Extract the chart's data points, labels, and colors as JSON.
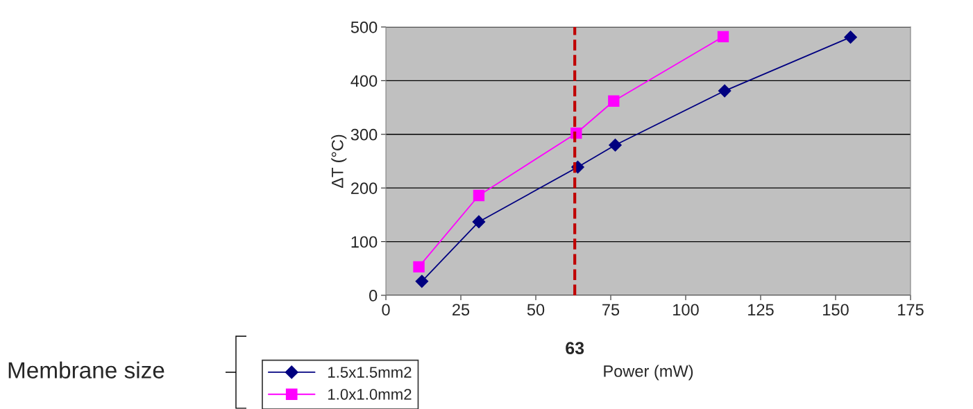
{
  "chart_data": {
    "type": "line",
    "xlabel": "Power (mW)",
    "ylabel": "ΔT (°C)",
    "legend_title": "Membrane size",
    "series": [
      {
        "name": "1.5x1.5mm2",
        "color": "#000080",
        "marker": "diamond",
        "x": [
          12,
          31,
          64,
          76.5,
          113,
          155
        ],
        "values": [
          26,
          137,
          239,
          280,
          381,
          481
        ]
      },
      {
        "name": "1.0x1.0mm2",
        "color": "#ff00ff",
        "marker": "square",
        "x": [
          11,
          31,
          63.5,
          76,
          112.5
        ],
        "values": [
          53,
          186,
          302,
          362,
          482
        ]
      }
    ],
    "xlim": [
      0,
      175
    ],
    "xticks": [
      0,
      25,
      50,
      75,
      100,
      125,
      150,
      175
    ],
    "ylim": [
      0,
      500
    ],
    "yticks": [
      0,
      100,
      200,
      300,
      400,
      500
    ],
    "ref_lines": [
      {
        "axis": "x",
        "value": 63,
        "label": "63",
        "color": "#c00000",
        "line_style": "dashed"
      }
    ],
    "grid": "y",
    "legend": "bottom left",
    "line_style": "solid"
  }
}
